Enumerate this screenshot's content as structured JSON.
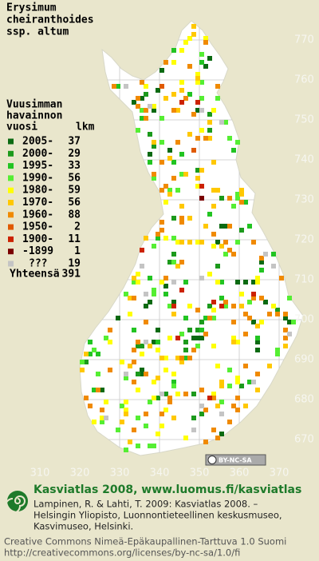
{
  "title": [
    "Erysimum",
    "cheiranthoides",
    "ssp. altum"
  ],
  "legend": {
    "heading": [
      "Vuusimman",
      "havainnon",
      "vuosi"
    ],
    "count_heading": "lkm",
    "items": [
      {
        "label": "2005-",
        "count": 37,
        "color": "#0b6a12"
      },
      {
        "label": "2000-",
        "count": 29,
        "color": "#1c9a1c"
      },
      {
        "label": "1995-",
        "count": 33,
        "color": "#22c422"
      },
      {
        "label": "1990-",
        "count": 56,
        "color": "#55ee33"
      },
      {
        "label": "1980-",
        "count": 59,
        "color": "#ffff00"
      },
      {
        "label": "1970-",
        "count": 56,
        "color": "#ffc800"
      },
      {
        "label": "1960-",
        "count": 88,
        "color": "#f08a00"
      },
      {
        "label": "1950-",
        "count": 2,
        "color": "#e05a00"
      },
      {
        "label": "1900-",
        "count": 11,
        "color": "#cc2200"
      },
      {
        "label": "-1899",
        "count": 1,
        "color": "#7a0000"
      },
      {
        "label": "???",
        "count": 19,
        "color": "#c4c4c4"
      }
    ],
    "total_label": "Yhteensä",
    "total": 391
  },
  "axes": {
    "northing": [
      770,
      760,
      750,
      740,
      730,
      720,
      710,
      700,
      690,
      680,
      670
    ],
    "easting": [
      310,
      320,
      330,
      340,
      350,
      360,
      370
    ]
  },
  "badge": "BY-NC-SA",
  "footer": {
    "logo_text": "Kasviatlas 2008, www.luomus.fi/kasviatlas",
    "citation": [
      "Lampinen, R. & Lahti, T. 2009: Kasviatlas 2008. –",
      "Helsingin Yliopisto, Luonnontieteellinen keskusmuseo,",
      "Kasvimuseo, Helsinki."
    ],
    "license": [
      "Creative Commons Nimeä-Epäkaupallinen-Tarttuva 1.0 Suomi",
      "http://creativecommons.org/licenses/by-nc-sa/1.0/fi"
    ]
  }
}
